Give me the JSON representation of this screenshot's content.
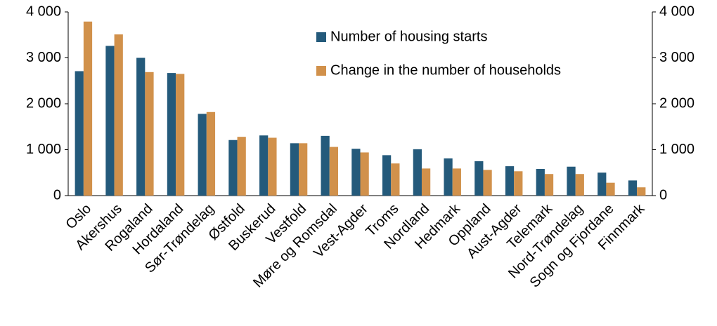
{
  "chart_data": {
    "type": "bar",
    "categories": [
      "Oslo",
      "Akershus",
      "Rogaland",
      "Hordaland",
      "Sør-Trøndelag",
      "Østfold",
      "Buskerud",
      "Vestfold",
      "Møre og Romsdal",
      "Vest-Agder",
      "Troms",
      "Nordland",
      "Hedmark",
      "Oppland",
      "Aust-Agder",
      "Telemark",
      "Nord-Trøndelag",
      "Sogn og Fjordane",
      "Finnmark"
    ],
    "series": [
      {
        "name": "Number of housing starts",
        "color": "#245a7b",
        "values": [
          2710,
          3260,
          3000,
          2670,
          1780,
          1210,
          1310,
          1140,
          1300,
          1020,
          880,
          1010,
          810,
          750,
          640,
          580,
          630,
          500,
          330
        ]
      },
      {
        "name": "Change in the number of households",
        "color": "#d1914b",
        "values": [
          3790,
          3510,
          2690,
          2650,
          1820,
          1280,
          1260,
          1140,
          1060,
          940,
          700,
          590,
          590,
          560,
          530,
          470,
          470,
          280,
          180
        ]
      }
    ],
    "ylim": [
      0,
      4000
    ],
    "yticks": [
      0,
      {
        "value": 1000,
        "label": "1 000"
      },
      {
        "value": 2000,
        "label": "2 000"
      },
      {
        "value": 3000,
        "label": "3 000"
      },
      {
        "value": 4000,
        "label": "4 000"
      }
    ],
    "y2lim": [
      0,
      4000
    ],
    "y2ticks": [
      0,
      {
        "value": 1000,
        "label": "1 000"
      },
      {
        "value": 2000,
        "label": "2 000"
      },
      {
        "value": 3000,
        "label": "3 000"
      },
      {
        "value": 4000,
        "label": "4 000"
      }
    ],
    "grid": false,
    "legend": "top"
  }
}
